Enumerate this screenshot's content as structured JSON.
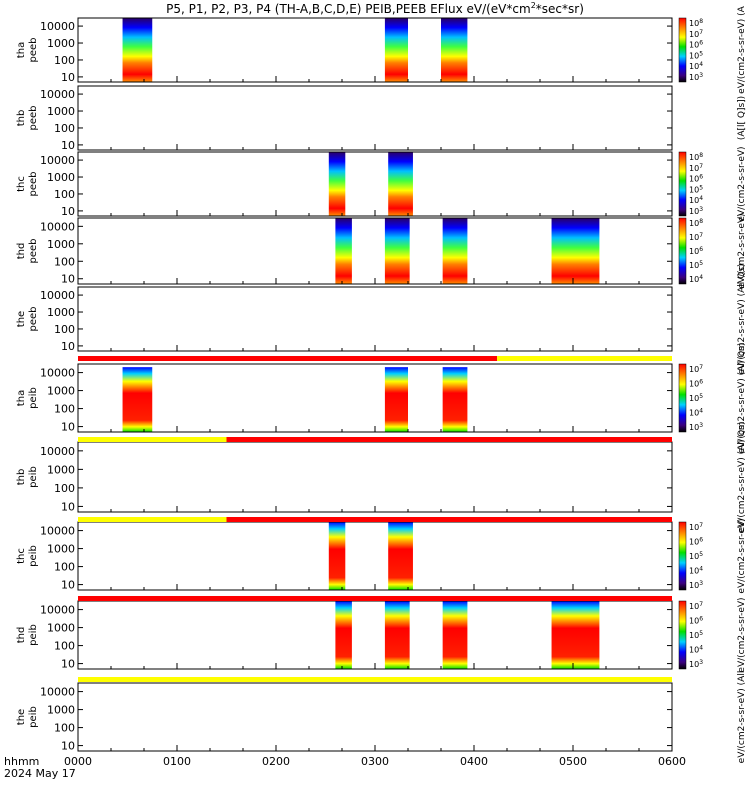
{
  "title": "P5, P1, P2, P3, P4 (TH-A,B,C,D,E) PEIB,PEEB EFlux eV/(eV*cm",
  "title_sup": "2",
  "title_end": "*sec*sr)",
  "time_axis": {
    "label_top": "hhmm",
    "label_bottom": "2024 May 17",
    "ticks": [
      "0000",
      "0100",
      "0200",
      "0300",
      "0400",
      "0500",
      "0600"
    ],
    "range_minutes": [
      0,
      360
    ]
  },
  "y_tick_labels": [
    "10",
    "100",
    "1000",
    "10000"
  ],
  "colors": {
    "quality_red": "#ff0000",
    "quality_yellow": "#ffff00",
    "frame": "#000000"
  },
  "chart_data": {
    "type": "heatmap",
    "x_unit": "minutes since 2024-05-17 00:00",
    "y_scale": "log",
    "y_range_eV": [
      5,
      30000
    ],
    "panels": [
      {
        "line1": "tha",
        "line2": "peeb",
        "colorbar": {
          "labels": [
            "10^8",
            "10^7",
            "10^6",
            "10^5",
            "10^4",
            "10^3"
          ],
          "unit": "eV/(cm2-s-sr-eV) (A"
        },
        "blocks": [
          {
            "start": 27,
            "end": 45,
            "hi": 30000
          },
          {
            "start": 186,
            "end": 200,
            "hi": 30000
          },
          {
            "start": 220,
            "end": 236,
            "hi": 30000
          }
        ]
      },
      {
        "line1": "thb",
        "line2": "peeb",
        "colorbar": {
          "labels": [],
          "unit": "(A[l[ Q]s])"
        },
        "blocks": []
      },
      {
        "line1": "thc",
        "line2": "peeb",
        "colorbar": {
          "labels": [
            "10^8",
            "10^7",
            "10^6",
            "10^5",
            "10^4",
            "10^3"
          ],
          "unit": "eV/(cm2-s-sr-eV)"
        },
        "blocks": [
          {
            "start": 152,
            "end": 162,
            "hi": 30000
          },
          {
            "start": 188,
            "end": 203,
            "hi": 30000
          }
        ]
      },
      {
        "line1": "thd",
        "line2": "peeb",
        "colorbar": {
          "labels": [
            "10^8",
            "10^7",
            "10^6",
            "10^5",
            "10^4"
          ],
          "unit": "eV/(cm2-s-sr-eV)"
        },
        "blocks": [
          {
            "start": 156,
            "end": 166,
            "hi": 30000
          },
          {
            "start": 186,
            "end": 201,
            "hi": 30000
          },
          {
            "start": 221,
            "end": 236,
            "hi": 30000
          },
          {
            "start": 287,
            "end": 316,
            "hi": 30000
          }
        ]
      },
      {
        "line1": "the",
        "line2": "peeb",
        "colorbar": {
          "labels": [],
          "unit": "eV/(cm2-s-sr-eV) (All Qs)"
        },
        "blocks": []
      },
      {
        "line1": "tha",
        "line2": "peib",
        "colorbar": {
          "labels": [
            "10^7",
            "10^6",
            "10^5",
            "10^4",
            "10^3"
          ],
          "unit": "eV/(cm2-s-sr-eV) (All Qs)"
        },
        "blocks": [
          {
            "start": 27,
            "end": 45,
            "hi": 20000
          },
          {
            "start": 186,
            "end": 200,
            "hi": 20000
          },
          {
            "start": 221,
            "end": 236,
            "hi": 20000
          }
        ]
      },
      {
        "line1": "thb",
        "line2": "peib",
        "colorbar": {
          "labels": [],
          "unit": "eV/(cm2-s-sr-eV) (All Qs)"
        },
        "blocks": []
      },
      {
        "line1": "thc",
        "line2": "peib",
        "colorbar": {
          "labels": [
            "10^7",
            "10^6",
            "10^5",
            "10^4",
            "10^3"
          ],
          "unit": "eV/(cm2-s-sr-eV)"
        },
        "blocks": [
          {
            "start": 152,
            "end": 162,
            "hi": 30000
          },
          {
            "start": 188,
            "end": 203,
            "hi": 30000
          }
        ]
      },
      {
        "line1": "thd",
        "line2": "peib",
        "colorbar": {
          "labels": [
            "10^7",
            "10^6",
            "10^5",
            "10^4",
            "10^3"
          ],
          "unit": "eV/(cm2-s-sr-eV)"
        },
        "blocks": [
          {
            "start": 156,
            "end": 166,
            "hi": 30000
          },
          {
            "start": 186,
            "end": 201,
            "hi": 30000
          },
          {
            "start": 221,
            "end": 236,
            "hi": 30000
          },
          {
            "start": 287,
            "end": 316,
            "hi": 30000
          }
        ]
      },
      {
        "line1": "the",
        "line2": "peib",
        "colorbar": {
          "labels": [],
          "unit": "eV/(cm2-s-sr-eV) (All"
        },
        "blocks": []
      }
    ],
    "quality_bars": [
      {
        "after_panel": 4,
        "segments": [
          {
            "start": 0,
            "end": 254,
            "color": "#ff0000"
          },
          {
            "start": 254,
            "end": 360,
            "color": "#ffff00"
          }
        ]
      },
      {
        "after_panel": 5,
        "segments": [
          {
            "start": 0,
            "end": 90,
            "color": "#ffff00"
          },
          {
            "start": 90,
            "end": 360,
            "color": "#ff0000"
          }
        ]
      },
      {
        "after_panel": 6,
        "segments": [
          {
            "start": 0,
            "end": 90,
            "color": "#ffff00"
          },
          {
            "start": 90,
            "end": 360,
            "color": "#ff0000"
          }
        ]
      },
      {
        "after_panel": 7,
        "segments": [
          {
            "start": 0,
            "end": 360,
            "color": "#ff0000"
          }
        ]
      },
      {
        "after_panel": 8,
        "segments": [
          {
            "start": 0,
            "end": 360,
            "color": "#ffff00"
          }
        ]
      }
    ]
  }
}
